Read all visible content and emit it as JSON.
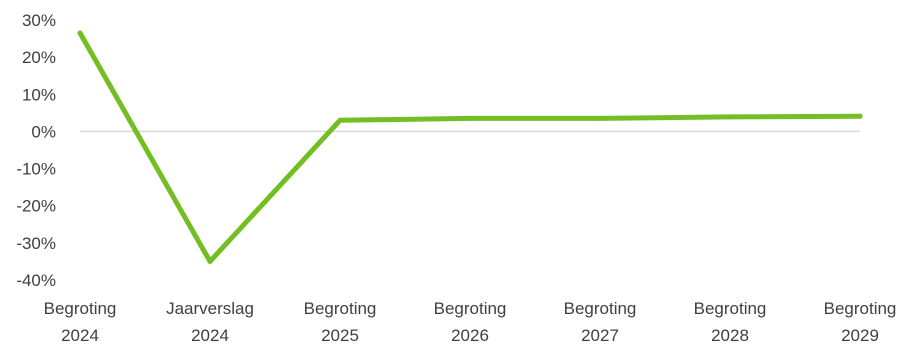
{
  "chart_data": {
    "type": "line",
    "title": "",
    "xlabel": "",
    "ylabel": "",
    "categories": [
      [
        "Begroting",
        "2024"
      ],
      [
        "Jaarverslag",
        "2024"
      ],
      [
        "Begroting",
        "2025"
      ],
      [
        "Begroting",
        "2026"
      ],
      [
        "Begroting",
        "2027"
      ],
      [
        "Begroting",
        "2028"
      ],
      [
        "Begroting",
        "2029"
      ]
    ],
    "series": [
      {
        "values": [
          26.5,
          -35,
          3,
          3.5,
          3.5,
          3.9,
          4.1
        ],
        "color": "#72BE23"
      }
    ],
    "ylim": [
      -40,
      30
    ],
    "yticks": [
      30,
      20,
      10,
      0,
      -10,
      -20,
      -30,
      -40
    ],
    "ytick_labels": [
      "30%",
      "20%",
      "10%",
      "0%",
      "-10%",
      "-20%",
      "-30%",
      "-40%"
    ],
    "zero_line_color": "#D9D9D9",
    "grid": false,
    "legend": "none"
  }
}
